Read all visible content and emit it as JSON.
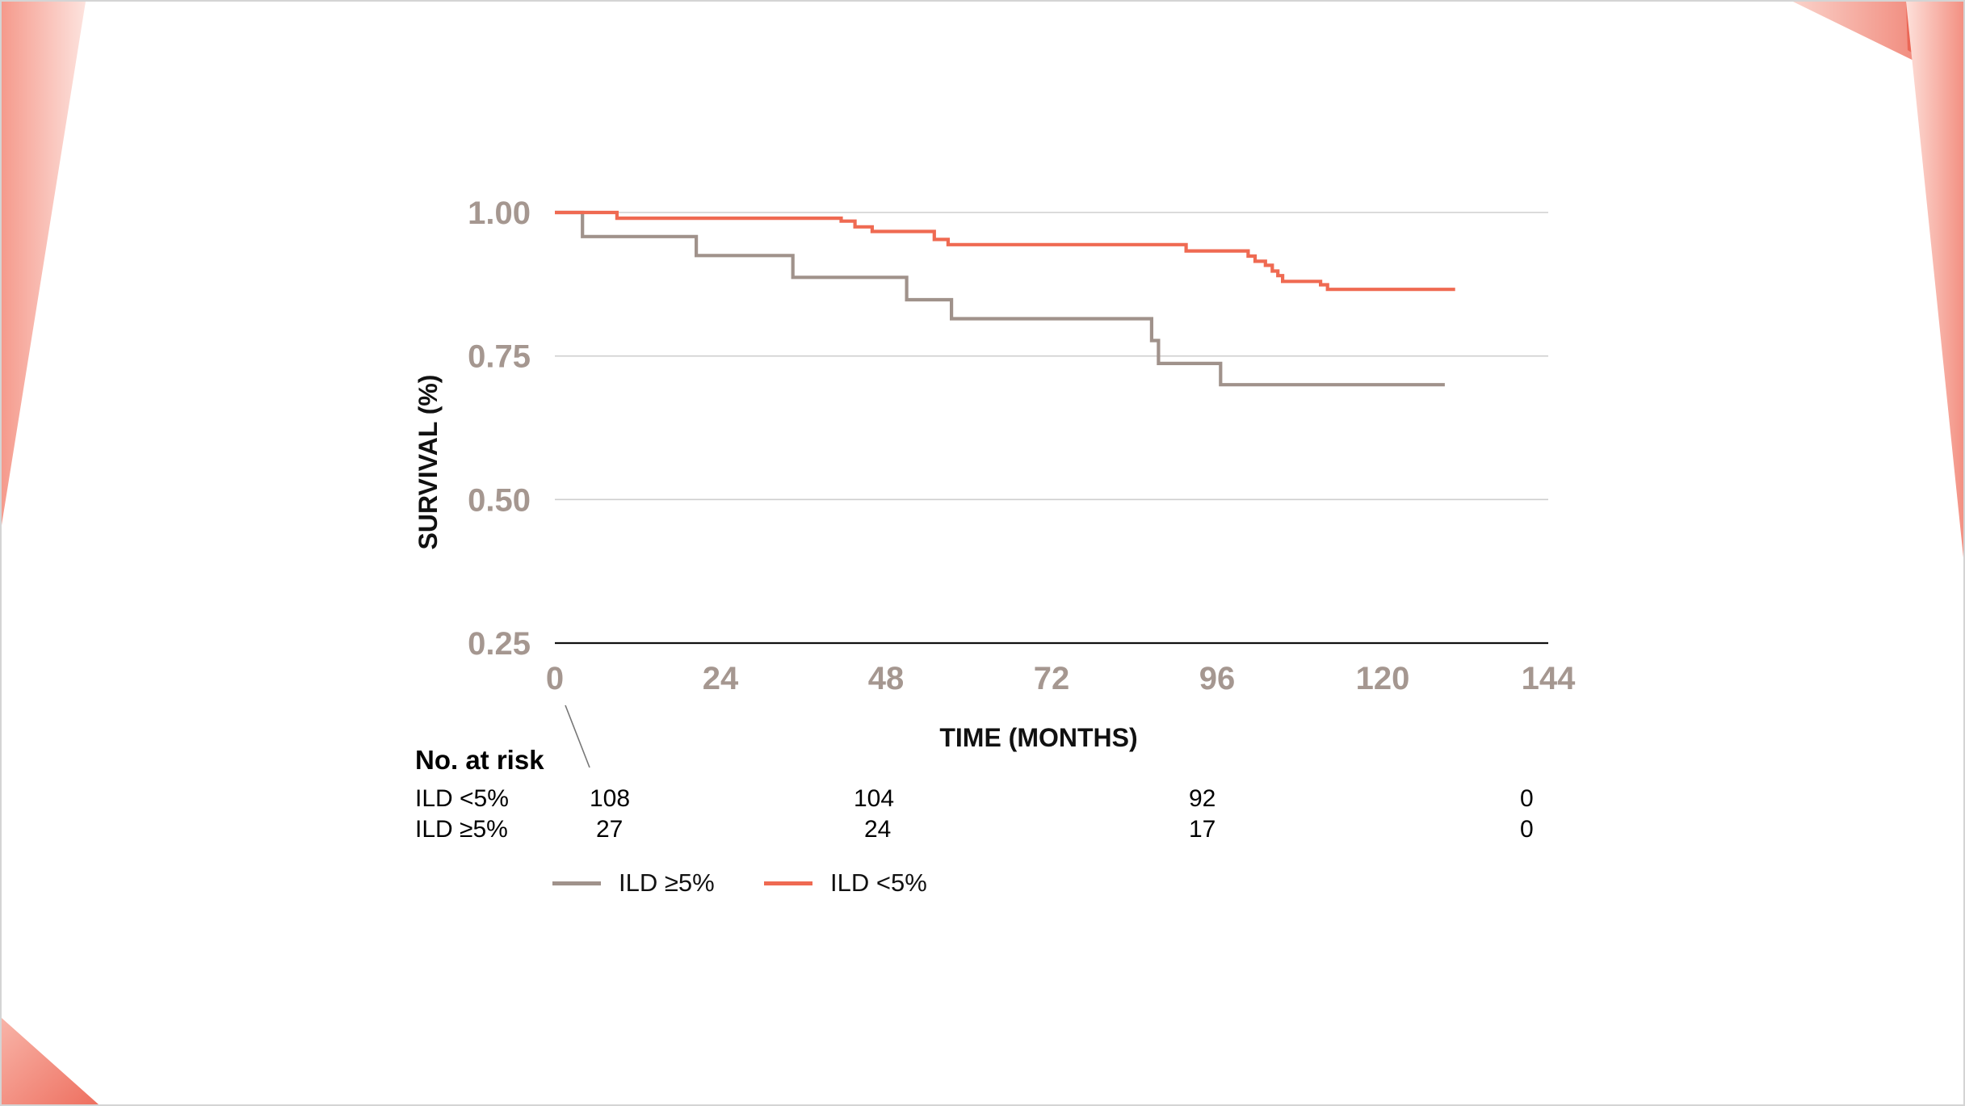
{
  "chart_data": {
    "type": "line",
    "title": "",
    "xlabel": "TIME (MONTHS)",
    "ylabel": "SURVIVAL (%)",
    "xlim": [
      0,
      144
    ],
    "ylim": [
      0.25,
      1.0
    ],
    "xticks": [
      "0",
      "24",
      "48",
      "72",
      "96",
      "120",
      "144"
    ],
    "yticks": [
      "1.00",
      "0.75",
      "0.50",
      "0.25"
    ],
    "legend_position": "bottom-left",
    "series": [
      {
        "name": "ILD ≥5%",
        "color": "#a0928b",
        "x": [
          0,
          4,
          4,
          20.5,
          20.5,
          34.5,
          34.5,
          51,
          51,
          57.5,
          57.5,
          86.5,
          86.5,
          87.5,
          87.5,
          96.5,
          96.5,
          129
        ],
        "y": [
          1.0,
          1.0,
          0.958,
          0.958,
          0.925,
          0.925,
          0.887,
          0.887,
          0.848,
          0.848,
          0.815,
          0.815,
          0.777,
          0.777,
          0.737,
          0.737,
          0.7,
          0.7
        ]
      },
      {
        "name": "ILD <5%",
        "color": "#ef6a52",
        "x": [
          0,
          9,
          9,
          41.5,
          41.5,
          43.5,
          43.5,
          46,
          46,
          55,
          55,
          57,
          57,
          91.5,
          91.5,
          100.5,
          100.5,
          101.5,
          101.5,
          103,
          103,
          104,
          104,
          104.8,
          104.8,
          105.5,
          105.5,
          111,
          111,
          112,
          112,
          130.5
        ],
        "y": [
          1.0,
          1.0,
          0.99,
          0.99,
          0.985,
          0.985,
          0.975,
          0.975,
          0.967,
          0.967,
          0.953,
          0.953,
          0.944,
          0.944,
          0.933,
          0.933,
          0.924,
          0.924,
          0.915,
          0.915,
          0.908,
          0.908,
          0.898,
          0.898,
          0.89,
          0.89,
          0.88,
          0.88,
          0.874,
          0.874,
          0.866,
          0.866
        ]
      }
    ]
  },
  "risk_table": {
    "heading": "No. at risk",
    "rows": [
      {
        "label": "ILD <5%",
        "values": [
          "108",
          "104",
          "92",
          "0"
        ]
      },
      {
        "label": "ILD ≥5%",
        "values": [
          "27",
          "24",
          "17",
          "0"
        ]
      }
    ]
  },
  "legend": [
    {
      "label": "ILD ≥5%",
      "color": "#a0928b"
    },
    {
      "label": "ILD <5%",
      "color": "#ef6a52"
    }
  ],
  "colors": {
    "deco_light": "#fbd0c8",
    "deco_mid": "#f3887a",
    "deco_dark": "#e8584a"
  }
}
